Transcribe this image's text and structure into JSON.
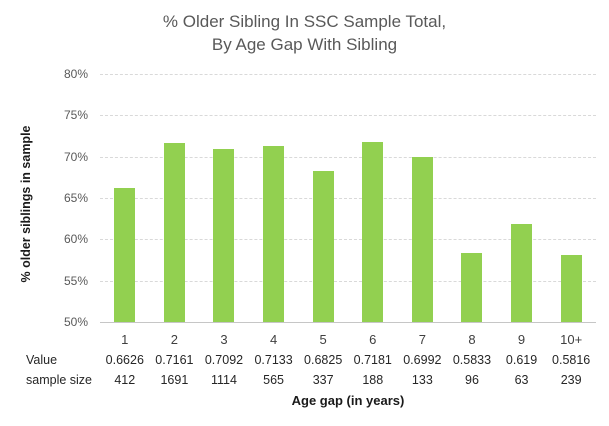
{
  "title": {
    "line1": "% Older Sibling In SSC Sample Total,",
    "line2": "By Age Gap With Sibling"
  },
  "chart_data": {
    "type": "bar",
    "title": "% Older Sibling In SSC Sample Total, By Age Gap With Sibling",
    "categories": [
      "1",
      "2",
      "3",
      "4",
      "5",
      "6",
      "7",
      "8",
      "9",
      "10+"
    ],
    "values": [
      0.6626,
      0.7161,
      0.7092,
      0.7133,
      0.6825,
      0.7181,
      0.6992,
      0.5833,
      0.619,
      0.5816
    ],
    "value_labels": [
      "0.6626",
      "0.7161",
      "0.7092",
      "0.7133",
      "0.6825",
      "0.7181",
      "0.6992",
      "0.5833",
      "0.619",
      "0.5816"
    ],
    "sample_sizes": [
      "412",
      "1691",
      "1114",
      "565",
      "337",
      "188",
      "133",
      "96",
      "63",
      "239"
    ],
    "value_row_label": "Value",
    "sample_row_label": "sample size",
    "xlabel": "Age gap (in years)",
    "ylabel": "% older siblings in sample",
    "ylim": [
      0.5,
      0.8
    ],
    "ytick_step": 0.05,
    "ytick_labels": [
      "50%",
      "55%",
      "60%",
      "65%",
      "70%",
      "75%",
      "80%"
    ],
    "grid": true,
    "legend": "none",
    "bar_color": "#92D050"
  },
  "colors": {
    "bar": "#92D050",
    "gridline": "#D9D9D9",
    "axis_line": "#C6C6C6",
    "title_text": "#595959",
    "tick_text": "#595959",
    "table_text": "#262626"
  }
}
